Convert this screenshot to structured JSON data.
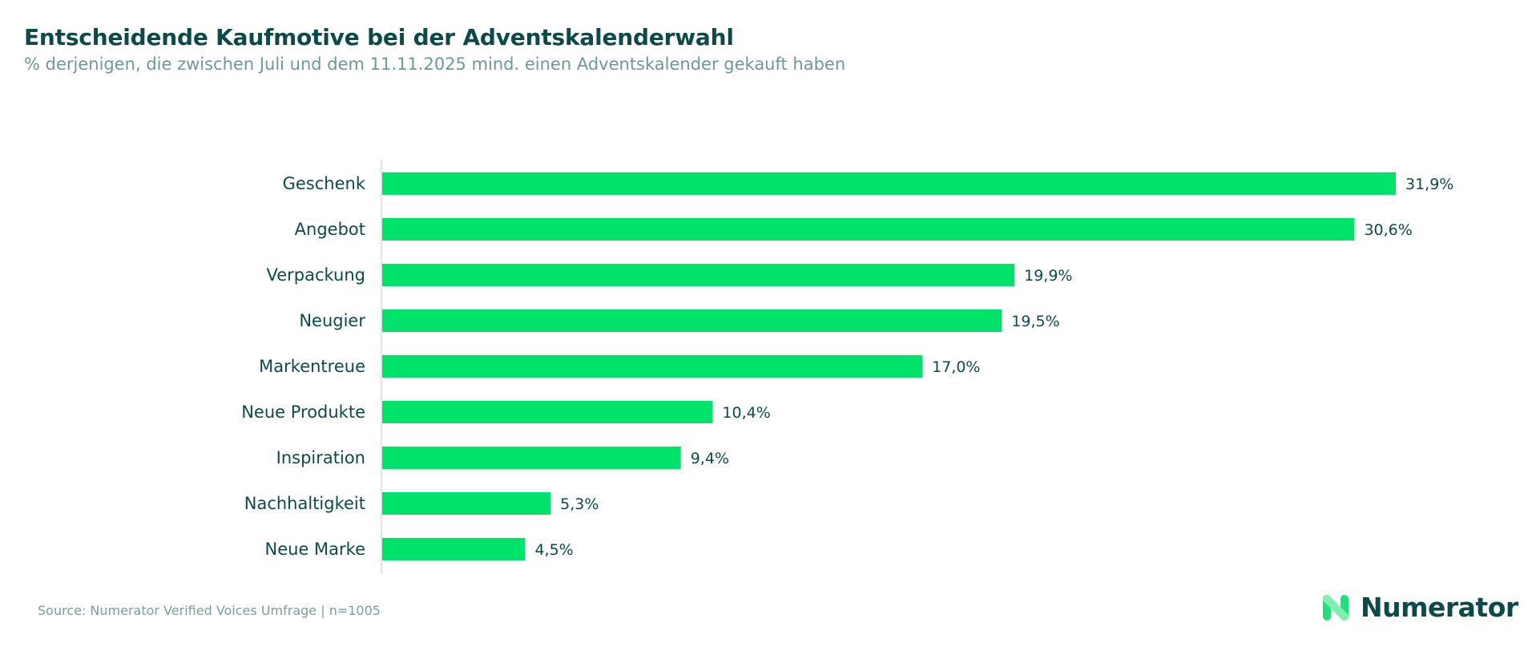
{
  "title": "Entscheidende Kaufmotive bei der Adventskalenderwahl",
  "subtitle": "% derjenigen, die zwischen Juli und dem 11.11.2025 mind. einen Adventskalender gekauft haben",
  "source": "Source: Numerator Verified Voices Umfrage | n=1005",
  "logo": {
    "text": "Numerator",
    "icon": "numerator-n-logo-icon"
  },
  "colors": {
    "bar": "#00e36b",
    "title": "#0c4a4a",
    "subtitle": "#6f9896",
    "axis": "#d9dede"
  },
  "chart_data": {
    "type": "bar",
    "orientation": "horizontal",
    "categories": [
      "Geschenk",
      "Angebot",
      "Verpackung",
      "Neugier",
      "Markentreue",
      "Neue Produkte",
      "Inspiration",
      "Nachhaltigkeit",
      "Neue Marke"
    ],
    "values": [
      31.9,
      30.6,
      19.9,
      19.5,
      17.0,
      10.4,
      9.4,
      5.3,
      4.5
    ],
    "data_labels": [
      "31,9%",
      "30,6%",
      "19,9%",
      "19,5%",
      "17,0%",
      "10,4%",
      "9,4%",
      "5,3%",
      "4,5%"
    ],
    "title": "Entscheidende Kaufmotive bei der Adventskalenderwahl",
    "xlabel": "",
    "ylabel": "",
    "xlim": [
      0,
      31.9
    ],
    "grid": false,
    "legend": "none"
  }
}
